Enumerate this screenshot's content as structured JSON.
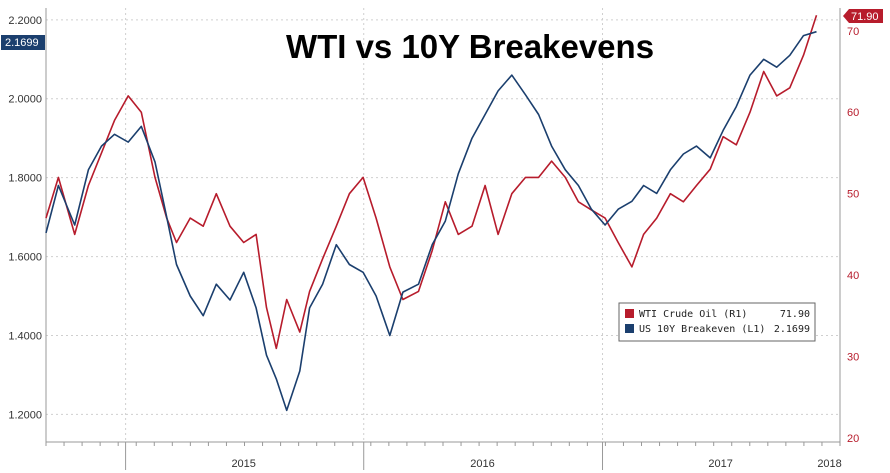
{
  "chart_data": {
    "type": "line",
    "title": "WTI vs 10Y Breakevens",
    "x_ticks": [
      "2015",
      "2016",
      "2017",
      "2018"
    ],
    "y_left": {
      "ticks": [
        "1.2000",
        "1.4000",
        "1.6000",
        "1.8000",
        "2.0000",
        "2.2000"
      ],
      "range": [
        1.13,
        2.23
      ]
    },
    "y_right": {
      "ticks": [
        "20",
        "30",
        "40",
        "50",
        "60",
        "70"
      ],
      "range": [
        19.5,
        72.8
      ]
    },
    "grid": true,
    "legend_position": "lower-right",
    "series": [
      {
        "name": "WTI Crude Oil (R1)",
        "axis": "right",
        "color": "#b71c2c",
        "last_value": "71.90",
        "points": [
          [
            "2014-09-01",
            47
          ],
          [
            "2014-09-20",
            52
          ],
          [
            "2014-10-15",
            45
          ],
          [
            "2014-11-05",
            51
          ],
          [
            "2014-11-25",
            55
          ],
          [
            "2014-12-15",
            59
          ],
          [
            "2015-01-05",
            62
          ],
          [
            "2015-01-25",
            60
          ],
          [
            "2015-02-15",
            52
          ],
          [
            "2015-03-05",
            47
          ],
          [
            "2015-03-20",
            44
          ],
          [
            "2015-04-10",
            47
          ],
          [
            "2015-04-30",
            46
          ],
          [
            "2015-05-20",
            50
          ],
          [
            "2015-06-10",
            46
          ],
          [
            "2015-07-01",
            44
          ],
          [
            "2015-07-20",
            45
          ],
          [
            "2015-08-05",
            36
          ],
          [
            "2015-08-20",
            31
          ],
          [
            "2015-09-05",
            37
          ],
          [
            "2015-09-25",
            33
          ],
          [
            "2015-10-10",
            38
          ],
          [
            "2015-10-30",
            42
          ],
          [
            "2015-11-20",
            46
          ],
          [
            "2015-12-10",
            50
          ],
          [
            "2015-12-31",
            52
          ],
          [
            "2016-01-20",
            47
          ],
          [
            "2016-02-10",
            41
          ],
          [
            "2016-03-01",
            37
          ],
          [
            "2016-03-25",
            38
          ],
          [
            "2016-04-15",
            43
          ],
          [
            "2016-05-05",
            49
          ],
          [
            "2016-05-25",
            45
          ],
          [
            "2016-06-15",
            46
          ],
          [
            "2016-07-05",
            51
          ],
          [
            "2016-07-25",
            45
          ],
          [
            "2016-08-15",
            50
          ],
          [
            "2016-09-05",
            52
          ],
          [
            "2016-09-25",
            52
          ],
          [
            "2016-10-15",
            54
          ],
          [
            "2016-11-05",
            52
          ],
          [
            "2016-11-25",
            49
          ],
          [
            "2016-12-15",
            48
          ],
          [
            "2017-01-05",
            47
          ],
          [
            "2017-01-25",
            44
          ],
          [
            "2017-02-15",
            41
          ],
          [
            "2017-03-05",
            45
          ],
          [
            "2017-03-25",
            47
          ],
          [
            "2017-04-15",
            50
          ],
          [
            "2017-05-05",
            49
          ],
          [
            "2017-05-25",
            51
          ],
          [
            "2017-06-15",
            53
          ],
          [
            "2017-07-05",
            57
          ],
          [
            "2017-07-25",
            56
          ],
          [
            "2017-08-15",
            60
          ],
          [
            "2017-09-05",
            65
          ],
          [
            "2017-09-25",
            62
          ],
          [
            "2017-10-15",
            63
          ],
          [
            "2017-11-05",
            67
          ],
          [
            "2017-11-25",
            71.9
          ]
        ]
      },
      {
        "name": "US 10Y Breakeven (L1)",
        "axis": "left",
        "color": "#1b3f6e",
        "last_value": "2.1699",
        "points": [
          [
            "2014-09-01",
            1.66
          ],
          [
            "2014-09-20",
            1.78
          ],
          [
            "2014-10-15",
            1.68
          ],
          [
            "2014-11-05",
            1.82
          ],
          [
            "2014-11-25",
            1.88
          ],
          [
            "2014-12-15",
            1.91
          ],
          [
            "2015-01-05",
            1.89
          ],
          [
            "2015-01-25",
            1.93
          ],
          [
            "2015-02-15",
            1.84
          ],
          [
            "2015-03-05",
            1.7
          ],
          [
            "2015-03-20",
            1.58
          ],
          [
            "2015-04-10",
            1.5
          ],
          [
            "2015-04-30",
            1.45
          ],
          [
            "2015-05-20",
            1.53
          ],
          [
            "2015-06-10",
            1.49
          ],
          [
            "2015-07-01",
            1.56
          ],
          [
            "2015-07-20",
            1.47
          ],
          [
            "2015-08-05",
            1.35
          ],
          [
            "2015-08-20",
            1.29
          ],
          [
            "2015-09-05",
            1.21
          ],
          [
            "2015-09-25",
            1.31
          ],
          [
            "2015-10-10",
            1.47
          ],
          [
            "2015-10-30",
            1.53
          ],
          [
            "2015-11-20",
            1.63
          ],
          [
            "2015-12-10",
            1.58
          ],
          [
            "2015-12-31",
            1.56
          ],
          [
            "2016-01-20",
            1.5
          ],
          [
            "2016-02-10",
            1.4
          ],
          [
            "2016-03-01",
            1.51
          ],
          [
            "2016-03-25",
            1.53
          ],
          [
            "2016-04-15",
            1.63
          ],
          [
            "2016-05-05",
            1.69
          ],
          [
            "2016-05-25",
            1.81
          ],
          [
            "2016-06-15",
            1.9
          ],
          [
            "2016-07-05",
            1.96
          ],
          [
            "2016-07-25",
            2.02
          ],
          [
            "2016-08-15",
            2.06
          ],
          [
            "2016-09-05",
            2.01
          ],
          [
            "2016-09-25",
            1.96
          ],
          [
            "2016-10-15",
            1.88
          ],
          [
            "2016-11-05",
            1.82
          ],
          [
            "2016-11-25",
            1.78
          ],
          [
            "2016-12-15",
            1.72
          ],
          [
            "2017-01-05",
            1.68
          ],
          [
            "2017-01-25",
            1.72
          ],
          [
            "2017-02-15",
            1.74
          ],
          [
            "2017-03-05",
            1.78
          ],
          [
            "2017-03-25",
            1.76
          ],
          [
            "2017-04-15",
            1.82
          ],
          [
            "2017-05-05",
            1.86
          ],
          [
            "2017-05-25",
            1.88
          ],
          [
            "2017-06-15",
            1.85
          ],
          [
            "2017-07-05",
            1.92
          ],
          [
            "2017-07-25",
            1.98
          ],
          [
            "2017-08-15",
            2.06
          ],
          [
            "2017-09-05",
            2.1
          ],
          [
            "2017-09-25",
            2.08
          ],
          [
            "2017-10-15",
            2.11
          ],
          [
            "2017-11-05",
            2.16
          ],
          [
            "2017-11-25",
            2.1699
          ]
        ]
      }
    ]
  },
  "legend": {
    "wti_name": "WTI Crude Oil (R1)",
    "wti_value": "71.90",
    "be_name": "US 10Y Breakeven (L1)",
    "be_value": "2.1699"
  },
  "badges": {
    "left": "2.1699",
    "right": "71.90"
  }
}
